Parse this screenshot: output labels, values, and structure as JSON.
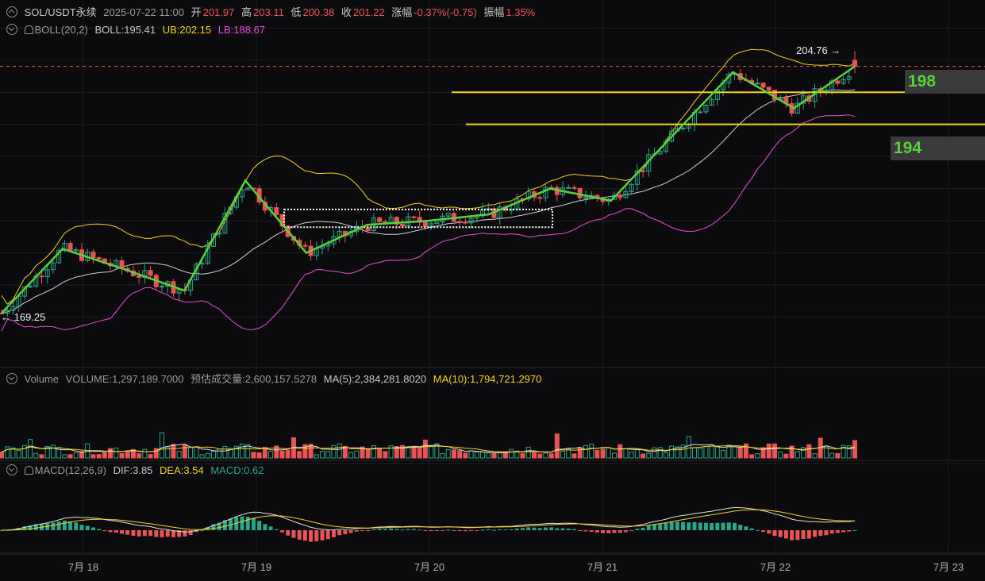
{
  "header": {
    "symbol": "SOL/USDT永续",
    "datetime": "2025-07-22 11:00",
    "open_label": "开",
    "open": "201.97",
    "high_label": "高",
    "high": "203.11",
    "low_label": "低",
    "low": "200.38",
    "close_label": "收",
    "close": "201.22",
    "change_label": "涨幅",
    "change": "-0.37%(-0.75)",
    "amplitude_label": "振幅",
    "amplitude": "1.35%"
  },
  "boll": {
    "name": "BOLL(20,2)",
    "mid": "BOLL:195.41",
    "ub": "UB:202.15",
    "lb": "LB:188.67"
  },
  "volume_header": {
    "name": "Volume",
    "volume": "VOLUME:1,297,189.7000",
    "est_label": "预估成交量:",
    "est_value": "2,600,157.5278",
    "ma5": "MA(5):2,384,281.8020",
    "ma10": "MA(10):1,794,721.2970"
  },
  "macd_header": {
    "name": "MACD(12,26,9)",
    "dif": "DIF:3.85",
    "dea": "DEA:3.54",
    "macd": "MACD:0.62"
  },
  "annotations": {
    "peak": "204.76 →",
    "low": "← 169.25",
    "resistance": "198",
    "support": "194"
  },
  "x_axis": [
    "7月 18",
    "7月 19",
    "7月 20",
    "7月 21",
    "7月 22",
    "7月 23"
  ],
  "colors": {
    "up": "#2aa58a",
    "down": "#e85355",
    "boll_mid": "#cfcfcf",
    "boll_ub": "#f2d31b",
    "boll_lb": "#e64fd6",
    "trend_line": "#5ad13a",
    "level_line": "#f2d31b",
    "price_line": "#e85355"
  },
  "chart_data": [
    {
      "type": "candlestick",
      "title": "SOL/USDT永续",
      "x_range": [
        "2025-07-17",
        "2025-07-23"
      ],
      "y_range": [
        166,
        208
      ],
      "indicators": [
        "BOLL(20,2)"
      ],
      "last_candle": {
        "open": 201.97,
        "high": 203.11,
        "low": 200.38,
        "close": 201.22
      },
      "key_points": {
        "high": 204.76,
        "low": 169.25
      },
      "horizontal_levels": [
        198,
        194
      ],
      "consolidation_box": {
        "x_start": "2025-07-19",
        "x_end": "2025-07-20",
        "y_range": [
          181.2,
          183.4
        ]
      },
      "current_price": 201.22,
      "close_path": [
        {
          "x": "2025-07-17",
          "y": 170.5
        },
        {
          "x": "2025-07-17",
          "y": 178.5
        },
        {
          "x": "2025-07-18",
          "y": 176.0
        },
        {
          "x": "2025-07-18",
          "y": 173.3
        },
        {
          "x": "2025-07-18",
          "y": 187.0
        },
        {
          "x": "2025-07-19",
          "y": 178.0
        },
        {
          "x": "2025-07-19",
          "y": 181.5
        },
        {
          "x": "2025-07-20",
          "y": 182.0
        },
        {
          "x": "2025-07-20",
          "y": 182.8
        },
        {
          "x": "2025-07-21",
          "y": 186.0
        },
        {
          "x": "2025-07-21",
          "y": 184.5
        },
        {
          "x": "2025-07-21",
          "y": 192.5
        },
        {
          "x": "2025-07-22",
          "y": 200.5
        },
        {
          "x": "2025-07-22",
          "y": 196.0
        },
        {
          "x": "2025-07-22",
          "y": 201.22
        }
      ]
    },
    {
      "type": "bar",
      "title": "Volume",
      "series": [
        {
          "name": "VOLUME",
          "values": [
            1297189.7
          ]
        },
        {
          "name": "MA(5)",
          "values": [
            2384281.802
          ]
        },
        {
          "name": "MA(10)",
          "values": [
            1794721.297
          ]
        }
      ]
    },
    {
      "type": "bar",
      "title": "MACD(12,26,9)",
      "series": [
        {
          "name": "DIF",
          "values": [
            3.85
          ]
        },
        {
          "name": "DEA",
          "values": [
            3.54
          ]
        },
        {
          "name": "MACD",
          "values": [
            0.62
          ]
        }
      ]
    }
  ]
}
